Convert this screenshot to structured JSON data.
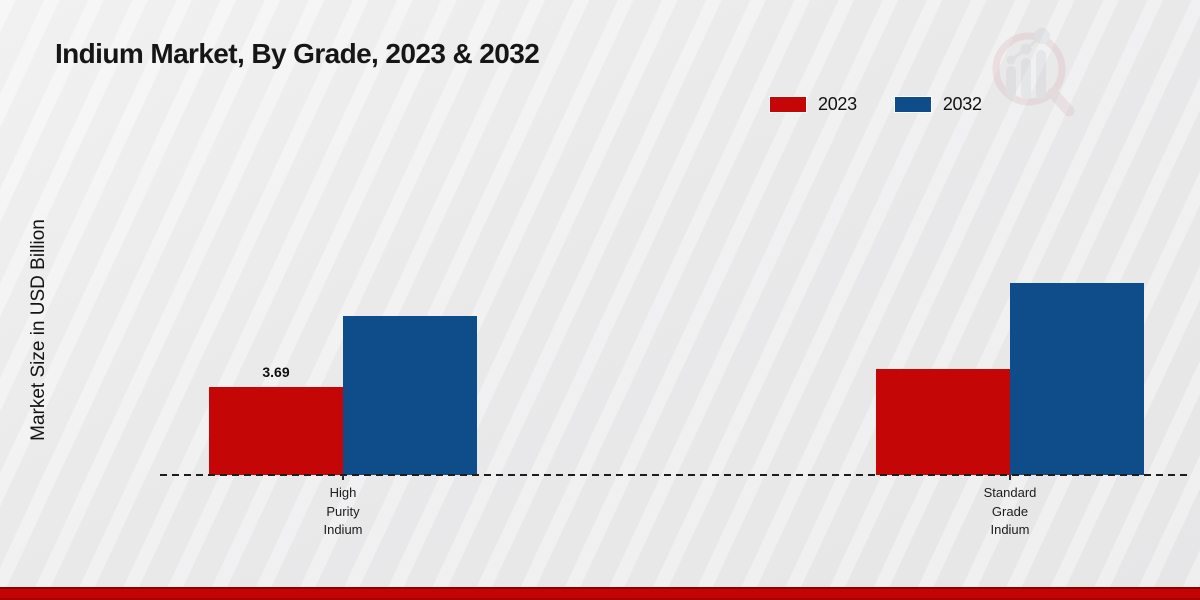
{
  "title": "Indium Market, By Grade, 2023 & 2032",
  "ylabel": "Market Size in USD Billion",
  "legend": {
    "position": "top-right",
    "items": [
      {
        "label": "2023",
        "color": "#c40606"
      },
      {
        "label": "2032",
        "color": "#0e4d8a"
      }
    ]
  },
  "logo": {
    "name": "magnifier-bar-chart-watermark-logo"
  },
  "colors": {
    "series_2023": "#c40606",
    "series_2032": "#0e4d8a",
    "baseline": "#1d1d1d",
    "bottom_band": "#c40404",
    "background": "#ededee"
  },
  "chart_data": {
    "type": "bar",
    "categories": [
      "High Purity Indium",
      "Standard Grade Indium"
    ],
    "category_lines": [
      {
        "l1": "High",
        "l2": "Purity",
        "l3": "Indium"
      },
      {
        "l1": "Standard",
        "l2": "Grade",
        "l3": "Indium"
      }
    ],
    "series": [
      {
        "name": "2023",
        "color": "#c40606",
        "values": [
          3.69,
          4.44
        ]
      },
      {
        "name": "2032",
        "color": "#0e4d8a",
        "values": [
          6.67,
          8.05
        ]
      }
    ],
    "value_labels": [
      {
        "series": "2023",
        "category": "High Purity Indium",
        "text": "3.69"
      }
    ],
    "title": "Indium Market, By Grade, 2023 & 2032",
    "xlabel": "",
    "ylabel": "Market Size in USD Billion",
    "ylim": [
      0,
      13.6
    ],
    "grid": false,
    "y_axis_ticks_visible": false,
    "legend_position": "top-right"
  }
}
